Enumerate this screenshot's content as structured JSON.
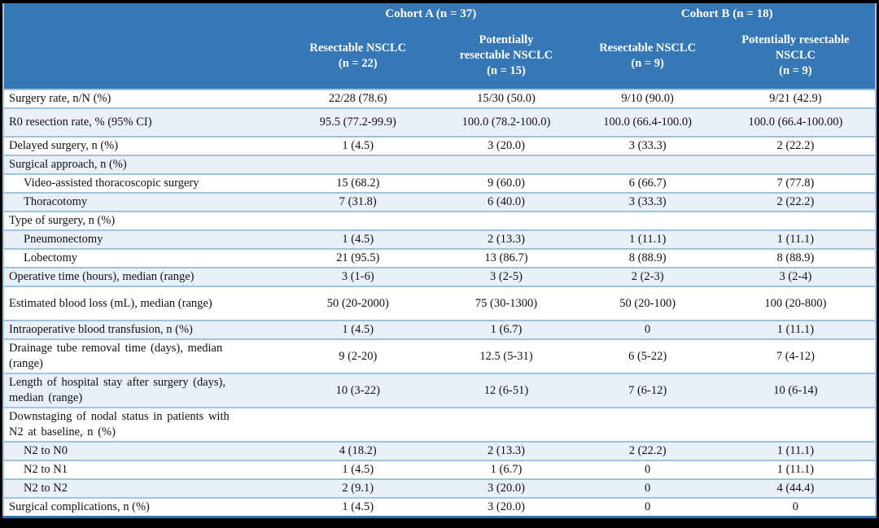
{
  "table": {
    "cohort_a": "Cohort A (n = 37)",
    "cohort_b": "Cohort B (n = 18)",
    "columns": [
      "Resectable NSCLC\n(n = 22)",
      "Potentially\nresectable NSCLC\n(n = 15)",
      "Resectable NSCLC\n(n = 9)",
      "Potentially resectable\nNSCLC\n(n = 9)"
    ],
    "rows": [
      {
        "label": "Surgery rate, n/N (%)",
        "indent": false,
        "values": [
          "22/28 (78.6)",
          "15/30 (50.0)",
          "9/10 (90.0)",
          "9/21 (42.9)"
        ]
      },
      {
        "label": "R0 resection rate, % (95% CI)",
        "indent": false,
        "values": [
          "95.5 (77.2-99.9)",
          "100.0 (78.2-100.0)",
          "100.0 (66.4-100.0)",
          "100.0 (66.4-100.00)"
        ]
      },
      {
        "label": "Delayed surgery, n (%)",
        "indent": false,
        "values": [
          "1 (4.5)",
          "3 (20.0)",
          "3 (33.3)",
          "2 (22.2)"
        ]
      },
      {
        "label": "Surgical approach, n (%)",
        "indent": false,
        "values": [
          "",
          "",
          "",
          ""
        ]
      },
      {
        "label": "Video-assisted thoracoscopic surgery",
        "indent": true,
        "values": [
          "15 (68.2)",
          "9 (60.0)",
          "6 (66.7)",
          "7 (77.8)"
        ]
      },
      {
        "label": "Thoracotomy",
        "indent": true,
        "values": [
          "7 (31.8)",
          "6 (40.0)",
          "3 (33.3)",
          "2 (22.2)"
        ]
      },
      {
        "label": "Type of surgery, n (%)",
        "indent": false,
        "values": [
          "",
          "",
          "",
          ""
        ]
      },
      {
        "label": "Pneumonectomy",
        "indent": true,
        "values": [
          "1 (4.5)",
          "2 (13.3)",
          "1 (11.1)",
          "1 (11.1)"
        ]
      },
      {
        "label": "Lobectomy",
        "indent": true,
        "values": [
          "21 (95.5)",
          "13 (86.7)",
          "8 (88.9)",
          "8 (88.9)"
        ]
      },
      {
        "label": "Operative time (hours), median (range)",
        "indent": false,
        "values": [
          "3 (1-6)",
          "3 (2-5)",
          "2 (2-3)",
          "3 (2-4)"
        ]
      },
      {
        "label": "Estimated blood loss (mL), median (range)",
        "indent": false,
        "values": [
          "50 (20-2000)",
          "75 (30-1300)",
          "50 (20-100)",
          "100 (20-800)"
        ]
      },
      {
        "label": "Intraoperative blood transfusion, n (%)",
        "indent": false,
        "values": [
          "1 (4.5)",
          "1 (6.7)",
          "0",
          "1 (11.1)"
        ]
      },
      {
        "label": "Drainage tube removal time (days), median\n(range)",
        "indent": false,
        "values": [
          "9 (2-20)",
          "12.5 (5-31)",
          "6 (5-22)",
          "7 (4-12)"
        ]
      },
      {
        "label": "Length of hospital stay after surgery (days),\nmedian (range)",
        "indent": false,
        "values": [
          "10 (3-22)",
          "12 (6-51)",
          "7 (6-12)",
          "10 (6-14)"
        ]
      },
      {
        "label": "Downstaging of nodal status in patients with\nN2 at baseline, n (%)",
        "indent": false,
        "values": [
          "",
          "",
          "",
          ""
        ]
      },
      {
        "label": "N2 to N0",
        "indent": true,
        "values": [
          "4 (18.2)",
          "2 (13.3)",
          "2 (22.2)",
          "1 (11.1)"
        ]
      },
      {
        "label": "N2 to N1",
        "indent": true,
        "values": [
          "1 (4.5)",
          "1 (6.7)",
          "0",
          "1 (11.1)"
        ]
      },
      {
        "label": "N2 to N2",
        "indent": true,
        "values": [
          "2 (9.1)",
          "3 (20.0)",
          "0",
          "4 (44.4)"
        ]
      },
      {
        "label": "Surgical complications, n (%)",
        "indent": false,
        "values": [
          "1 (4.5)",
          "3 (20.0)",
          "0",
          "0"
        ]
      }
    ]
  },
  "colors": {
    "header_bg": "#3678B6",
    "header_text": "#ffffff",
    "stripe_bg": "#EAF0F8",
    "row_border": "#9CC2E6",
    "bottom_border": "#2E74B5",
    "page_bg": "#000000",
    "body_text": "#111111"
  }
}
